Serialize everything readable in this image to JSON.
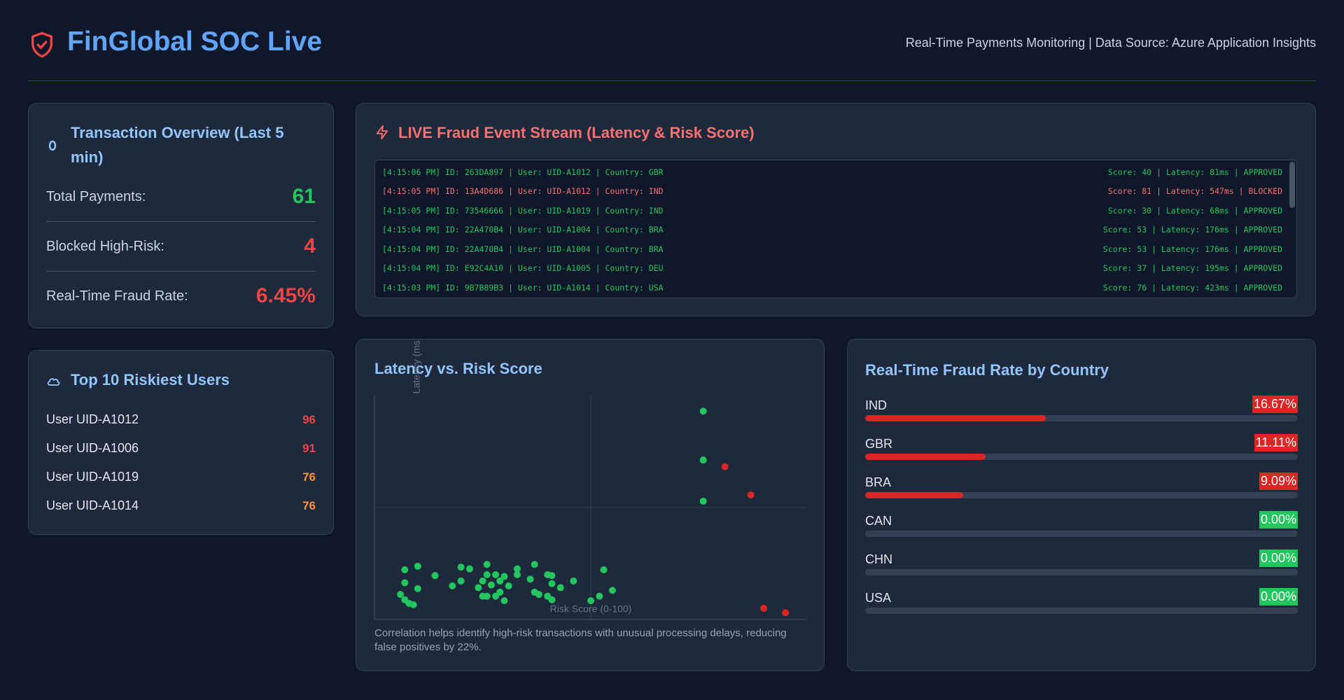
{
  "header": {
    "title": "FinGlobal SOC Live",
    "subtitle": "Real-Time Payments Monitoring | Data Source: Azure Application Insights"
  },
  "overview": {
    "title": "Transaction Overview (Last 5 min)",
    "rows": [
      {
        "label": "Total Payments:",
        "value": "61",
        "color": "#22c55e"
      },
      {
        "label": "Blocked High-Risk:",
        "value": "4",
        "color": "#ef4444"
      },
      {
        "label": "Real-Time Fraud Rate:",
        "value": "6.45%",
        "color": "#ef4444"
      }
    ]
  },
  "riskiest": {
    "title": "Top 10 Riskiest Users",
    "users": [
      {
        "name": "User UID-A1012",
        "score": 96,
        "color": "#ef4444"
      },
      {
        "name": "User UID-A1006",
        "score": 91,
        "color": "#ef4444"
      },
      {
        "name": "User UID-A1019",
        "score": 76,
        "color": "#fb923c"
      },
      {
        "name": "User UID-A1014",
        "score": 76,
        "color": "#fb923c"
      }
    ]
  },
  "stream": {
    "title": "LIVE Fraud Event Stream (Latency & Risk Score)",
    "events": [
      {
        "left": "[4:15:06 PM] ID: 263DA897 | User: UID-A1012 | Country: GBR",
        "right": "Score: 40 | Latency: 81ms | APPROVED",
        "color": "#22c55e"
      },
      {
        "left": "[4:15:05 PM] ID: 13A4D686 | User: UID-A1012 | Country: IND",
        "right": "Score: 81 | Latency: 547ms | BLOCKED",
        "color": "#f87171"
      },
      {
        "left": "[4:15:05 PM] ID: 73546666 | User: UID-A1019 | Country: IND",
        "right": "Score: 30 | Latency: 68ms | APPROVED",
        "color": "#22c55e"
      },
      {
        "left": "[4:15:04 PM] ID: 22A470B4 | User: UID-A1004 | Country: BRA",
        "right": "Score: 53 | Latency: 176ms | APPROVED",
        "color": "#22c55e"
      },
      {
        "left": "[4:15:04 PM] ID: 22A470B4 | User: UID-A1004 | Country: BRA",
        "right": "Score: 53 | Latency: 176ms | APPROVED",
        "color": "#22c55e"
      },
      {
        "left": "[4:15:04 PM] ID: E92C4A10 | User: UID-A1005 | Country: DEU",
        "right": "Score: 37 | Latency: 195ms | APPROVED",
        "color": "#22c55e"
      },
      {
        "left": "[4:15:03 PM] ID: 9B7B89B3 | User: UID-A1014 | Country: USA",
        "right": "Score: 76 | Latency: 423ms | APPROVED",
        "color": "#22c55e"
      }
    ]
  },
  "chart_data": {
    "type": "scatter",
    "title": "Latency vs. Risk Score",
    "x_label": "Risk Score (0-100)",
    "y_label": "Latency (ms)",
    "caption": "Correlation helps identify high-risk transactions with unusual processing delays, reducing false positives by 22%.",
    "xlim": [
      0,
      100
    ],
    "ylim": [
      0,
      500
    ],
    "grid": true,
    "x": [
      76,
      76,
      81,
      87,
      76,
      90,
      95,
      7,
      10,
      7,
      10,
      6,
      7,
      8,
      9,
      14,
      18,
      20,
      22,
      20,
      24,
      25,
      26,
      26,
      27,
      28,
      29,
      30,
      29,
      28,
      25,
      26,
      30,
      31,
      33,
      33,
      36,
      37,
      37,
      38,
      40,
      41,
      41,
      40,
      41,
      43,
      46,
      50,
      52,
      53,
      55
    ],
    "values": [
      465,
      356,
      341,
      278,
      264,
      25,
      15,
      111,
      119,
      82,
      69,
      56,
      44,
      36,
      33,
      98,
      75,
      117,
      113,
      86,
      71,
      86,
      123,
      100,
      77,
      100,
      86,
      96,
      61,
      52,
      52,
      52,
      42,
      75,
      113,
      100,
      90,
      123,
      61,
      56,
      100,
      80,
      98,
      52,
      44,
      71,
      86,
      42,
      52,
      111,
      65
    ],
    "colors": [
      "#22c55e",
      "#22c55e",
      "#dc2626",
      "#dc2626",
      "#22c55e",
      "#dc2626",
      "#dc2626",
      "#22c55e",
      "#22c55e",
      "#22c55e",
      "#22c55e",
      "#22c55e",
      "#22c55e",
      "#22c55e",
      "#22c55e",
      "#22c55e",
      "#22c55e",
      "#22c55e",
      "#22c55e",
      "#22c55e",
      "#22c55e",
      "#22c55e",
      "#22c55e",
      "#22c55e",
      "#22c55e",
      "#22c55e",
      "#22c55e",
      "#22c55e",
      "#22c55e",
      "#22c55e",
      "#22c55e",
      "#22c55e",
      "#22c55e",
      "#22c55e",
      "#22c55e",
      "#22c55e",
      "#22c55e",
      "#22c55e",
      "#22c55e",
      "#22c55e",
      "#22c55e",
      "#22c55e",
      "#22c55e",
      "#22c55e",
      "#22c55e",
      "#22c55e",
      "#22c55e",
      "#22c55e",
      "#22c55e",
      "#22c55e",
      "#22c55e"
    ]
  },
  "country": {
    "title": "Real-Time Fraud Rate by Country",
    "xlim": [
      0,
      40
    ],
    "bar_color": "#dc2626",
    "zero_color": "#22c55e",
    "categories": [
      "IND",
      "GBR",
      "BRA",
      "CAN",
      "CHN",
      "USA"
    ],
    "values": [
      16.67,
      11.11,
      9.09,
      0,
      0,
      0
    ],
    "value_labels": [
      "16.67%",
      "11.11%",
      "9.09%",
      "0.00%",
      "0.00%",
      "0.00%"
    ]
  }
}
